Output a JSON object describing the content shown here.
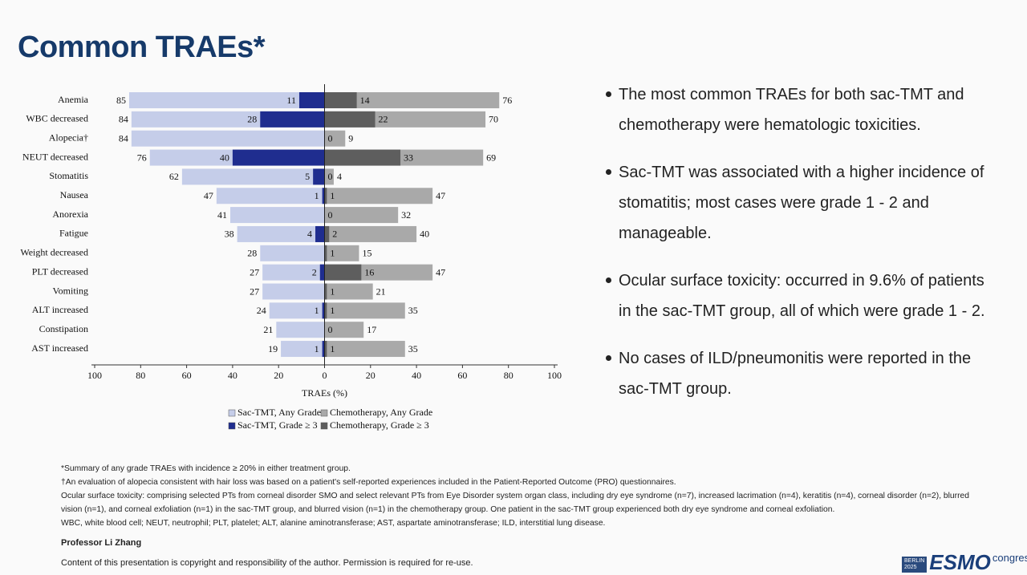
{
  "title": "Common TRAEs*",
  "chart_data": {
    "type": "butterfly-bar",
    "xlabel": "TRAEs (%)",
    "categories": [
      "Anemia",
      "WBC decreased",
      "Alopecia†",
      "NEUT decreased",
      "Stomatitis",
      "Nausea",
      "Anorexia",
      "Fatigue",
      "Weight decreased",
      "PLT decreased",
      "Vomiting",
      "ALT increased",
      "Constipation",
      "AST increased"
    ],
    "series": [
      {
        "name": "Sac-TMT, Any Grade",
        "color": "#c5cde9",
        "values": [
          -85,
          -84,
          -84,
          -76,
          -62,
          -47,
          -41,
          -38,
          -28,
          -27,
          -27,
          -24,
          -21,
          -19
        ],
        "value_labels": [
          "85",
          "84",
          "84",
          "76",
          "62",
          "47",
          "41",
          "38",
          "28",
          "27",
          "27",
          "24",
          "21",
          "19"
        ]
      },
      {
        "name": "Sac-TMT, Grade ≥ 3",
        "color": "#1f2d8f",
        "values": [
          -11,
          -28,
          0,
          -40,
          -5,
          -1,
          0,
          -4,
          0,
          -2,
          0,
          -1,
          0,
          -1
        ],
        "value_labels": [
          "11",
          "28",
          "0",
          "40",
          "5",
          "1",
          "0",
          "4",
          "0",
          "2",
          "0",
          "1",
          "0",
          "1"
        ]
      },
      {
        "name": "Chemotherapy, Any Grade",
        "color": "#a9a9a9",
        "values": [
          76,
          70,
          9,
          69,
          4,
          47,
          32,
          40,
          15,
          47,
          21,
          35,
          17,
          35
        ]
      },
      {
        "name": "Chemotherapy, Grade ≥ 3",
        "color": "#5e5e5e",
        "values": [
          14,
          22,
          0,
          33,
          0,
          1,
          0,
          2,
          1,
          16,
          1,
          1,
          0,
          1
        ]
      }
    ],
    "xlim": [
      -100,
      100
    ],
    "xticks": [
      {
        "value": -100,
        "label": "100"
      },
      {
        "value": -80,
        "label": "80"
      },
      {
        "value": -60,
        "label": "60"
      },
      {
        "value": -40,
        "label": "40"
      },
      {
        "value": -20,
        "label": "20"
      },
      0,
      20,
      40,
      60,
      80,
      100
    ]
  },
  "bullets": [
    "The most common TRAEs for both sac-TMT and chemotherapy were hematologic toxicities.",
    "Sac-TMT was associated with a higher incidence of stomatitis; most cases were grade 1 - 2 and manageable.",
    "Ocular surface toxicity: occurred in 9.6% of patients in the sac-TMT group, all of which were grade 1 - 2.",
    "No cases of ILD/pneumonitis were reported in the sac-TMT group."
  ],
  "footnotes": [
    "*Summary of any grade TRAEs with incidence ≥ 20% in either treatment group.",
    "†An evaluation of alopecia consistent with hair loss was based on a patient's self-reported experiences included in the Patient-Reported Outcome (PRO) questionnaires.",
    "Ocular surface toxicity: comprising selected PTs from corneal disorder SMO and select relevant PTs from Eye Disorder system organ class, including dry eye syndrome (n=7), increased lacrimation (n=4), keratitis (n=4), corneal disorder (n=2), blurred vision (n=1), and corneal exfoliation (n=1) in the sac-TMT group, and blurred vision (n=1) in the chemotherapy group. One patient in the sac-TMT group experienced both dry eye syndrome and corneal exfoliation.",
    "WBC, white blood cell; NEUT, neutrophil; PLT, platelet; ALT, alanine aminotransferase; AST, aspartate aminotransferase; ILD, interstitial lung disease."
  ],
  "presenter": "Professor Li Zhang",
  "copyright": "Content of this presentation is copyright and responsibility of the author. Permission is required for re-use.",
  "logo": {
    "city": "BERLIN",
    "year": "2025",
    "name": "ESMO",
    "event": "congress"
  }
}
